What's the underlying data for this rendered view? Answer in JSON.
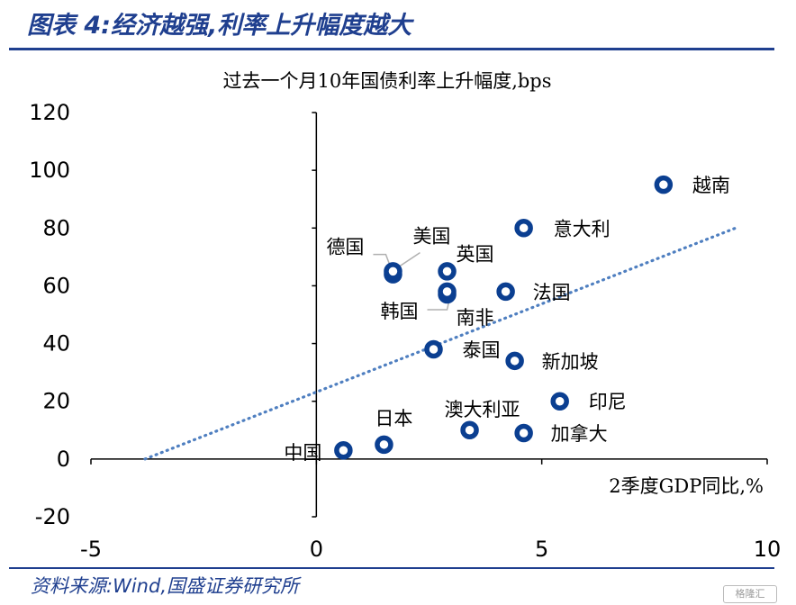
{
  "header": {
    "title": "图表 4:经济越强,利率上升幅度越大"
  },
  "footer": {
    "source": "资料来源:Wind,国盛证券研究所",
    "logo_text": "格隆汇"
  },
  "colors": {
    "brand": "#1f3f8f",
    "marker": "#0b3f91",
    "trend": "#4f7fc0"
  },
  "chart_data": {
    "type": "scatter",
    "ylabel": "过去一个月10年国债利率上升幅度,bps",
    "xlabel": "2季度GDP同比,%",
    "xlim": [
      -5,
      10
    ],
    "ylim": [
      -20,
      120
    ],
    "xticks": [
      "-5",
      "0",
      "5",
      "10"
    ],
    "yticks": [
      "120",
      "100",
      "80",
      "60",
      "40",
      "20",
      "0",
      "-20"
    ],
    "points": [
      {
        "name": "越南",
        "x": 7.7,
        "y": 95
      },
      {
        "name": "意大利",
        "x": 4.6,
        "y": 80
      },
      {
        "name": "德国",
        "x": 1.7,
        "y": 64
      },
      {
        "name": "美国",
        "x": 1.7,
        "y": 65
      },
      {
        "name": "英国",
        "x": 2.9,
        "y": 65
      },
      {
        "name": "韩国",
        "x": 2.9,
        "y": 57
      },
      {
        "name": "南非",
        "x": 2.9,
        "y": 58
      },
      {
        "name": "法国",
        "x": 4.2,
        "y": 58
      },
      {
        "name": "泰国",
        "x": 2.6,
        "y": 38
      },
      {
        "name": "新加坡",
        "x": 4.4,
        "y": 34
      },
      {
        "name": "印尼",
        "x": 5.4,
        "y": 20
      },
      {
        "name": "澳大利亚",
        "x": 3.4,
        "y": 10
      },
      {
        "name": "加拿大",
        "x": 4.6,
        "y": 9
      },
      {
        "name": "日本",
        "x": 1.5,
        "y": 5
      },
      {
        "name": "中国",
        "x": 0.6,
        "y": 3
      }
    ],
    "trendline": {
      "from": [
        -3.8,
        0
      ],
      "to": [
        9.3,
        80
      ],
      "style": "dotted"
    },
    "grid": false,
    "legend": "none"
  }
}
